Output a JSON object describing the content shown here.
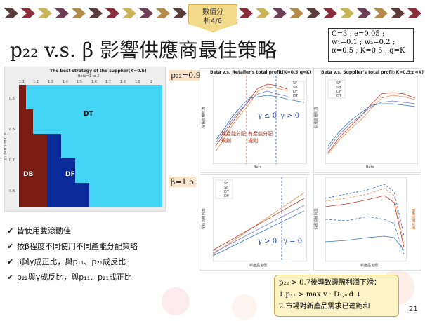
{
  "header": {
    "badge_line1": "數值分",
    "badge_line2": "析4/6",
    "chevron_colors": [
      "#5b3a3a",
      "#8a2d3b",
      "#c9b458",
      "#6c3d55",
      "#b48a4a"
    ]
  },
  "title": "p₂₂ v.s. β 影響供應商最佳策略",
  "params": {
    "line1": "C=3   ;   e=0.05   ;",
    "line2": "w₁=0.1 ; w₂=0.2 ;",
    "line3": "α=0.5 ; K=0.5 ; q=K"
  },
  "labels": {
    "p22_label": "p₂₂=0.9",
    "beta_label": "β=1.5"
  },
  "heatmap": {
    "title": "The best strategy of the supplier(K=0.5)",
    "subtitle": "Beta=1 to 2",
    "ylabel": "p22=0.5 to 0.9",
    "xticks": [
      "1.1",
      "1.2",
      "1.3",
      "1.4",
      "1.5",
      "1.6",
      "1.7",
      "1.8",
      "1.9",
      "2"
    ],
    "yticks": [
      "0.5",
      "0.6",
      "0.7",
      "0.8",
      "0.9"
    ],
    "regions": {
      "dt": "DT",
      "db": "DB",
      "df": "DF"
    },
    "colors": {
      "dt": "#44d4f5",
      "db": "#7b1d12",
      "df": "#0b2a9a"
    }
  },
  "chart_retailer": {
    "title": "Beta v.s. Retailer's total profit(K=0.5;q=K)",
    "xlabel": "Beta",
    "ylabel": "零售商總利潤",
    "legend": [
      "SF",
      "SB",
      "DF",
      "DT"
    ],
    "ann1": "γ ≤ 0",
    "ann2": "γ > 0",
    "ann3": "無產能分配規則",
    "ann4": "有產能分配規則"
  },
  "chart_supplier": {
    "title": "Beta v.s. Supplier's total profit(K=0.5;q=K)",
    "xlabel": "Beta",
    "ylabel": "供應商總利潤",
    "legend": [
      "SF",
      "SB",
      "DF",
      "DT"
    ]
  },
  "chart_p22_left": {
    "xlabel": "新產品定價",
    "ylabel": "零售商總利潤",
    "legend": [
      "SF",
      "SB",
      "DT",
      "DF"
    ],
    "ann1": "γ > 0",
    "ann2": "γ = 0"
  },
  "chart_p22_right": {
    "xlabel": "新產品定價",
    "ylabel": "供應商總利潤",
    "ylabel2": "新產品需求量"
  },
  "bullets": [
    "皆使用雙滾動佳",
    "依β程度不同使用不同產能分配策略",
    "β與γ成正比，與p₁₁、p₂₁成反比",
    "p₂₂與γ成反比，與p₁₁、p₂₁成正比"
  ],
  "note": {
    "line1": "p₂₂ >  0.7後導致邊際利潤下滑：",
    "line2": "1.p₁₁ > max  v · D₁,ₒₗd ↓",
    "line3": "2.市場對新產品需求已達飽和"
  },
  "page_number": "21"
}
